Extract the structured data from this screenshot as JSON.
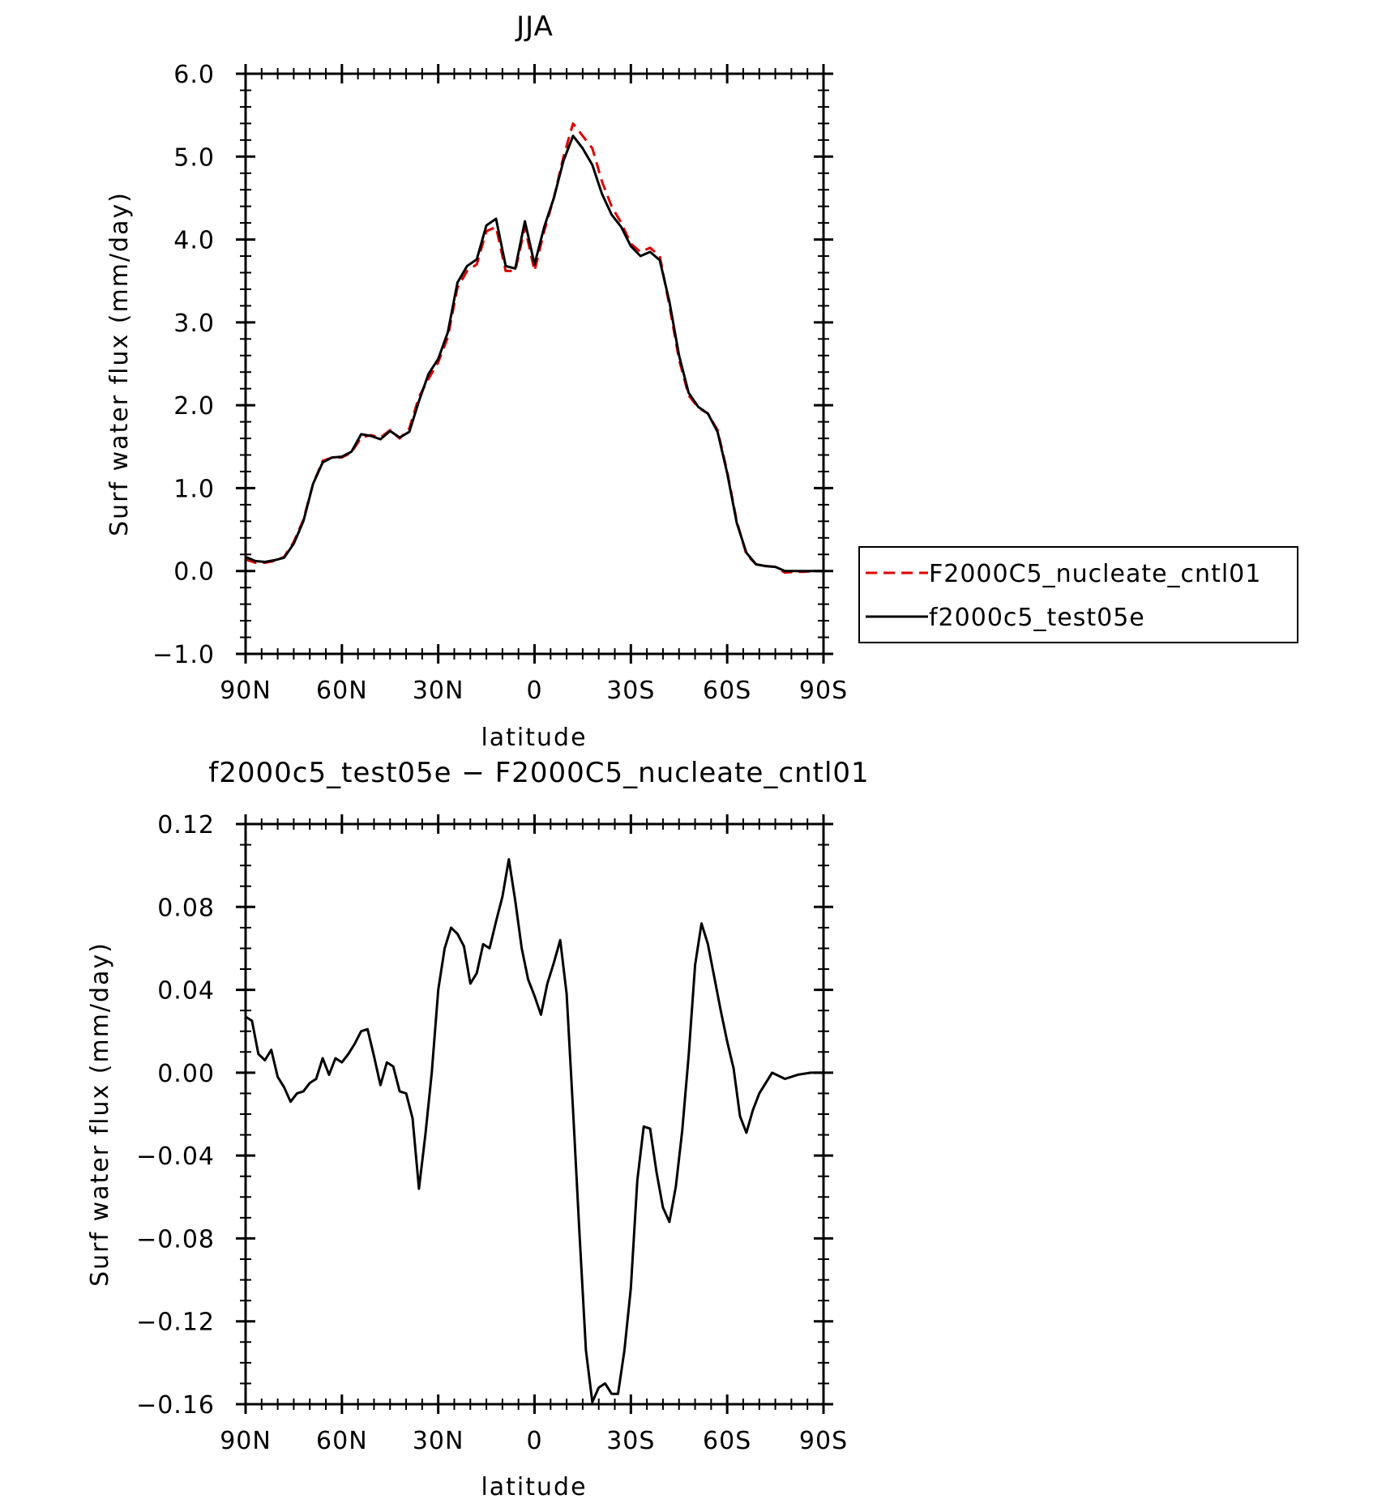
{
  "chart_data": [
    {
      "type": "line",
      "title": "JJA",
      "xlabel": "latitude",
      "ylabel": "Surf water flux (mm/day)",
      "xlim": [
        90,
        -90
      ],
      "ylim": [
        -1.0,
        6.0
      ],
      "x_ticks": [
        {
          "value": 90,
          "label": "90N"
        },
        {
          "value": 60,
          "label": "60N"
        },
        {
          "value": 30,
          "label": "30N"
        },
        {
          "value": 0,
          "label": "0"
        },
        {
          "value": -30,
          "label": "30S"
        },
        {
          "value": -60,
          "label": "60S"
        },
        {
          "value": -90,
          "label": "90S"
        }
      ],
      "y_ticks": [
        {
          "value": 6.0,
          "label": "6.0"
        },
        {
          "value": 5.0,
          "label": "5.0"
        },
        {
          "value": 4.0,
          "label": "4.0"
        },
        {
          "value": 3.0,
          "label": "3.0"
        },
        {
          "value": 2.0,
          "label": "2.0"
        },
        {
          "value": 1.0,
          "label": "1.0"
        },
        {
          "value": 0.0,
          "label": "0.0"
        },
        {
          "value": -1.0,
          "label": "−1.0"
        }
      ],
      "grid": false,
      "legend_position": "right",
      "x": [
        90,
        87,
        84,
        81,
        78,
        75,
        72,
        69,
        66,
        63,
        60,
        57,
        54,
        51,
        48,
        45,
        42,
        39,
        36,
        33,
        30,
        27,
        24,
        21,
        18,
        15,
        12,
        9,
        6,
        3,
        0,
        -3,
        -6,
        -9,
        -12,
        -15,
        -18,
        -21,
        -24,
        -27,
        -30,
        -33,
        -36,
        -39,
        -42,
        -45,
        -48,
        -51,
        -54,
        -57,
        -60,
        -63,
        -66,
        -69,
        -72,
        -75,
        -78,
        -81,
        -84,
        -87,
        -90
      ],
      "series": [
        {
          "name": "F2000C5_nucleate_cntl01",
          "color": "#e00000",
          "dash": "dashed",
          "values": [
            0.14,
            0.1,
            0.1,
            0.12,
            0.17,
            0.35,
            0.62,
            1.05,
            1.33,
            1.37,
            1.37,
            1.43,
            1.61,
            1.64,
            1.61,
            1.7,
            1.6,
            1.72,
            2.1,
            2.32,
            2.52,
            2.82,
            3.42,
            3.62,
            3.7,
            4.1,
            4.15,
            3.62,
            3.62,
            4.15,
            3.62,
            4.1,
            4.5,
            5.0,
            5.4,
            5.25,
            5.1,
            4.7,
            4.4,
            4.2,
            3.95,
            3.85,
            3.9,
            3.8,
            3.2,
            2.55,
            2.12,
            1.97,
            1.9,
            1.7,
            1.2,
            0.6,
            0.2,
            0.08,
            0.06,
            0.05,
            -0.02,
            -0.01,
            -0.01,
            0.0,
            0.0
          ]
        },
        {
          "name": "f2000c5_test05e",
          "color": "#000000",
          "dash": "solid",
          "values": [
            0.17,
            0.12,
            0.11,
            0.13,
            0.16,
            0.33,
            0.6,
            1.05,
            1.31,
            1.37,
            1.38,
            1.44,
            1.65,
            1.63,
            1.59,
            1.69,
            1.61,
            1.68,
            2.05,
            2.38,
            2.56,
            2.88,
            3.48,
            3.68,
            3.76,
            4.17,
            4.25,
            3.68,
            3.65,
            4.22,
            3.7,
            4.15,
            4.5,
            4.95,
            5.25,
            5.1,
            4.9,
            4.55,
            4.3,
            4.15,
            3.92,
            3.8,
            3.85,
            3.75,
            3.25,
            2.6,
            2.15,
            1.98,
            1.9,
            1.68,
            1.18,
            0.58,
            0.22,
            0.08,
            0.06,
            0.05,
            0.0,
            0.0,
            0.0,
            0.0,
            0.0
          ]
        }
      ]
    },
    {
      "type": "line",
      "title": "f2000c5_test05e − F2000C5_nucleate_cntl01",
      "xlabel": "latitude",
      "ylabel": "Surf water flux (mm/day)",
      "xlim": [
        90,
        -90
      ],
      "ylim": [
        -0.16,
        0.12
      ],
      "x_ticks": [
        {
          "value": 90,
          "label": "90N"
        },
        {
          "value": 60,
          "label": "60N"
        },
        {
          "value": 30,
          "label": "30N"
        },
        {
          "value": 0,
          "label": "0"
        },
        {
          "value": -30,
          "label": "30S"
        },
        {
          "value": -60,
          "label": "60S"
        },
        {
          "value": -90,
          "label": "90S"
        }
      ],
      "y_ticks": [
        {
          "value": 0.12,
          "label": "0.12"
        },
        {
          "value": 0.08,
          "label": "0.08"
        },
        {
          "value": 0.04,
          "label": "0.04"
        },
        {
          "value": 0.0,
          "label": "0.00"
        },
        {
          "value": -0.04,
          "label": "−0.04"
        },
        {
          "value": -0.08,
          "label": "−0.08"
        },
        {
          "value": -0.12,
          "label": "−0.12"
        },
        {
          "value": -0.16,
          "label": "−0.16"
        }
      ],
      "grid": false,
      "x": [
        90,
        88,
        86,
        84,
        82,
        80,
        78,
        76,
        74,
        72,
        70,
        68,
        66,
        64,
        62,
        60,
        58,
        56,
        54,
        52,
        50,
        48,
        46,
        44,
        42,
        40,
        38,
        36,
        34,
        32,
        30,
        28,
        26,
        24,
        22,
        20,
        18,
        16,
        14,
        12,
        10,
        8,
        6,
        4,
        2,
        0,
        -2,
        -4,
        -6,
        -8,
        -10,
        -12,
        -14,
        -16,
        -18,
        -20,
        -22,
        -24,
        -26,
        -28,
        -30,
        -32,
        -34,
        -36,
        -38,
        -40,
        -42,
        -44,
        -46,
        -48,
        -50,
        -52,
        -54,
        -56,
        -58,
        -60,
        -62,
        -64,
        -66,
        -68,
        -70,
        -74,
        -78,
        -82,
        -86,
        -90
      ],
      "series": [
        {
          "name": "",
          "color": "#000000",
          "dash": "solid",
          "values": [
            0.027,
            0.025,
            0.009,
            0.006,
            0.011,
            -0.002,
            -0.007,
            -0.014,
            -0.01,
            -0.009,
            -0.005,
            -0.003,
            0.007,
            -0.001,
            0.007,
            0.005,
            0.009,
            0.014,
            0.02,
            0.021,
            0.008,
            -0.006,
            0.005,
            0.003,
            -0.009,
            -0.01,
            -0.022,
            -0.056,
            -0.03,
            0.0,
            0.04,
            0.06,
            0.07,
            0.067,
            0.061,
            0.043,
            0.048,
            0.062,
            0.06,
            0.073,
            0.085,
            0.103,
            0.083,
            0.06,
            0.045,
            0.037,
            0.028,
            0.043,
            0.053,
            0.064,
            0.038,
            -0.018,
            -0.078,
            -0.134,
            -0.159,
            -0.152,
            -0.15,
            -0.155,
            -0.155,
            -0.134,
            -0.104,
            -0.052,
            -0.026,
            -0.027,
            -0.048,
            -0.065,
            -0.072,
            -0.055,
            -0.028,
            0.008,
            0.052,
            0.072,
            0.062,
            0.046,
            0.03,
            0.015,
            0.002,
            -0.021,
            -0.029,
            -0.018,
            -0.01,
            0.0,
            -0.003,
            -0.001,
            0.0,
            0.0
          ]
        }
      ]
    }
  ]
}
